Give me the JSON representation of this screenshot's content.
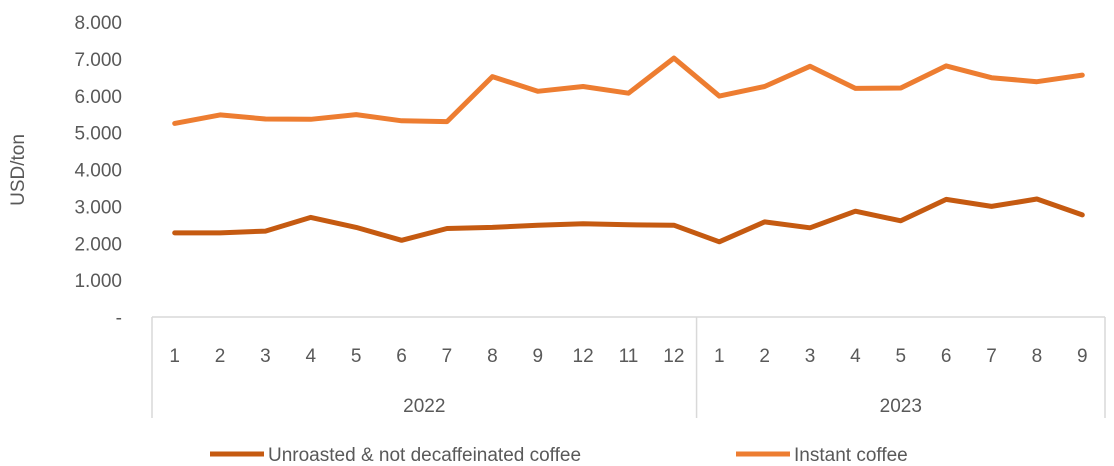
{
  "chart_data": {
    "type": "line",
    "ylabel": "USD/ton",
    "ylim": [
      0,
      8000
    ],
    "yticks": [
      {
        "value": 0,
        "label": "-"
      },
      {
        "value": 1000,
        "label": "1.000"
      },
      {
        "value": 2000,
        "label": "2.000"
      },
      {
        "value": 3000,
        "label": "3.000"
      },
      {
        "value": 4000,
        "label": "4.000"
      },
      {
        "value": 5000,
        "label": "5.000"
      },
      {
        "value": 6000,
        "label": "6.000"
      },
      {
        "value": 7000,
        "label": "7.000"
      },
      {
        "value": 8000,
        "label": "8.000"
      }
    ],
    "categories": [
      "1",
      "2",
      "3",
      "4",
      "5",
      "6",
      "7",
      "8",
      "9",
      "12",
      "11",
      "12",
      "1",
      "2",
      "3",
      "4",
      "5",
      "6",
      "7",
      "8",
      "9"
    ],
    "groups": [
      {
        "label": "2022",
        "count": 12
      },
      {
        "label": "2023",
        "count": 9
      }
    ],
    "grid": false,
    "legend_position": "bottom",
    "series": [
      {
        "name": "Unroasted & not decaffeinated coffee",
        "color": "#c55a11",
        "values": [
          2280,
          2280,
          2330,
          2700,
          2430,
          2080,
          2400,
          2430,
          2490,
          2530,
          2500,
          2490,
          2040,
          2580,
          2420,
          2870,
          2610,
          3190,
          3000,
          3200,
          2770
        ]
      },
      {
        "name": "Instant coffee",
        "color": "#ed7d31",
        "values": [
          5250,
          5480,
          5370,
          5360,
          5490,
          5320,
          5300,
          6520,
          6120,
          6250,
          6070,
          7020,
          5990,
          6250,
          6800,
          6200,
          6210,
          6810,
          6490,
          6380,
          6560
        ]
      }
    ]
  }
}
